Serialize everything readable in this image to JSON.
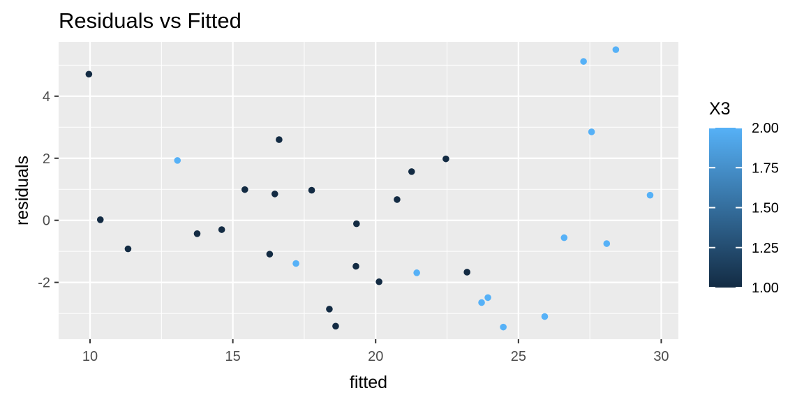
{
  "chart_data": {
    "type": "scatter",
    "title": "Residuals vs Fitted",
    "xlabel": "fitted",
    "ylabel": "residuals",
    "xlim": [
      8.9,
      30.6
    ],
    "ylim": [
      -3.83,
      5.75
    ],
    "x_ticks": [
      10,
      15,
      20,
      25,
      30
    ],
    "x_tick_labels": [
      "10",
      "15",
      "20",
      "25",
      "30"
    ],
    "y_ticks": [
      -2,
      0,
      2,
      4
    ],
    "y_tick_labels": [
      "-2",
      "0",
      "2",
      "4"
    ],
    "grid": true,
    "legend": {
      "title": "X3",
      "position": "right",
      "type": "colorbar",
      "range": [
        1.0,
        2.0
      ],
      "breaks": [
        1.0,
        1.25,
        1.5,
        1.75,
        2.0
      ],
      "labels": [
        "1.00",
        "1.25",
        "1.50",
        "1.75",
        "2.00"
      ],
      "low_color": "#132B43",
      "high_color": "#56B1F7"
    },
    "points": [
      {
        "x": 9.96,
        "y": 4.71,
        "color_value": 1
      },
      {
        "x": 10.36,
        "y": 0.02,
        "color_value": 1
      },
      {
        "x": 11.33,
        "y": -0.92,
        "color_value": 1
      },
      {
        "x": 13.06,
        "y": 1.93,
        "color_value": 2
      },
      {
        "x": 13.75,
        "y": -0.43,
        "color_value": 1
      },
      {
        "x": 14.61,
        "y": -0.3,
        "color_value": 1
      },
      {
        "x": 15.42,
        "y": 0.99,
        "color_value": 1
      },
      {
        "x": 16.29,
        "y": -1.09,
        "color_value": 1
      },
      {
        "x": 16.47,
        "y": 0.85,
        "color_value": 1
      },
      {
        "x": 16.62,
        "y": 2.6,
        "color_value": 1
      },
      {
        "x": 17.21,
        "y": -1.39,
        "color_value": 2
      },
      {
        "x": 17.76,
        "y": 0.97,
        "color_value": 1
      },
      {
        "x": 18.38,
        "y": -2.86,
        "color_value": 1
      },
      {
        "x": 18.6,
        "y": -3.41,
        "color_value": 1
      },
      {
        "x": 19.31,
        "y": -1.48,
        "color_value": 1
      },
      {
        "x": 19.33,
        "y": -0.11,
        "color_value": 1
      },
      {
        "x": 20.12,
        "y": -1.98,
        "color_value": 1
      },
      {
        "x": 20.75,
        "y": 0.67,
        "color_value": 1
      },
      {
        "x": 21.26,
        "y": 1.57,
        "color_value": 1
      },
      {
        "x": 21.44,
        "y": -1.69,
        "color_value": 2
      },
      {
        "x": 22.46,
        "y": 1.98,
        "color_value": 1
      },
      {
        "x": 23.2,
        "y": -1.67,
        "color_value": 1
      },
      {
        "x": 23.71,
        "y": -2.65,
        "color_value": 2
      },
      {
        "x": 23.93,
        "y": -2.49,
        "color_value": 2
      },
      {
        "x": 24.47,
        "y": -3.44,
        "color_value": 2
      },
      {
        "x": 25.92,
        "y": -3.1,
        "color_value": 2
      },
      {
        "x": 26.6,
        "y": -0.56,
        "color_value": 2
      },
      {
        "x": 27.28,
        "y": 5.12,
        "color_value": 2
      },
      {
        "x": 27.56,
        "y": 2.85,
        "color_value": 2
      },
      {
        "x": 28.09,
        "y": -0.75,
        "color_value": 2
      },
      {
        "x": 28.41,
        "y": 5.5,
        "color_value": 2
      },
      {
        "x": 29.61,
        "y": 0.81,
        "color_value": 2
      }
    ]
  }
}
